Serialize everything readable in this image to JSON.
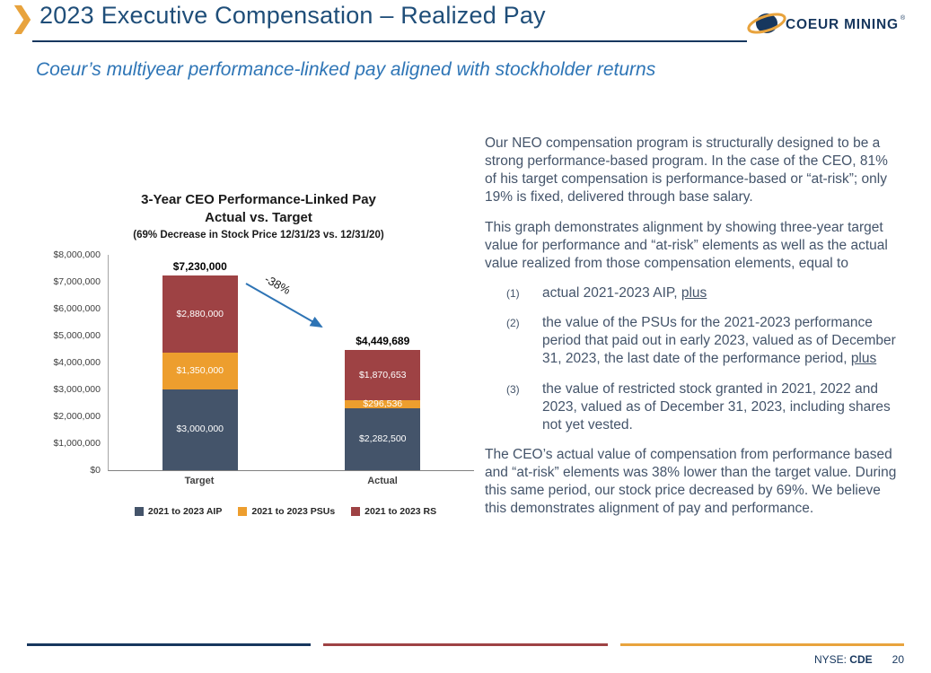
{
  "header": {
    "title": "2023 Executive Compensation – Realized Pay",
    "logo_text": "COEUR MINING",
    "logo_reg": "®"
  },
  "subtitle": "Coeur’s multiyear performance-linked pay aligned with stockholder returns",
  "chart_data": {
    "type": "bar",
    "stacked": true,
    "title": "3-Year CEO Performance-Linked Pay",
    "subtitle": "Actual vs. Target",
    "note": "(69% Decrease in Stock Price 12/31/23 vs. 12/31/20)",
    "categories": [
      "Target",
      "Actual"
    ],
    "series": [
      {
        "name": "2021 to 2023 AIP",
        "color": "#44546A",
        "values": [
          3000000,
          2282500
        ],
        "labels": [
          "$3,000,000",
          "$2,282,500"
        ]
      },
      {
        "name": "2021 to 2023 PSUs",
        "color": "#ED9E2E",
        "values": [
          1350000,
          296536
        ],
        "labels": [
          "$1,350,000",
          "$296,536"
        ]
      },
      {
        "name": "2021 to 2023 RS",
        "color": "#9E4244",
        "values": [
          2880000,
          1870653
        ],
        "labels": [
          "$2,880,000",
          "$1,870,653"
        ]
      }
    ],
    "totals": [
      "$7,230,000",
      "$4,449,689"
    ],
    "annotation": "-38%",
    "ylim": [
      0,
      8000000
    ],
    "ytick_step": 1000000,
    "y_ticks": [
      "$8,000,000",
      "$7,000,000",
      "$6,000,000",
      "$5,000,000",
      "$4,000,000",
      "$3,000,000",
      "$2,000,000",
      "$1,000,000",
      "$0"
    ],
    "legend_position": "bottom",
    "grid": false
  },
  "body": {
    "p1": "Our NEO compensation program is structurally designed to be a strong performance-based program. In the case of the CEO, 81% of his target compensation is performance-based or “at-risk”; only 19% is fixed, delivered through base salary.",
    "p2": "This graph demonstrates alignment by showing three-year target value for performance and “at-risk” elements as well as the actual value realized from those compensation elements, equal to",
    "list": [
      {
        "num": "(1)",
        "text": "actual 2021-2023 AIP, ",
        "underline": "plus"
      },
      {
        "num": "(2)",
        "text": "the value of the PSUs for the 2021-2023 performance period that paid out in early 2023, valued as of December 31, 2023, the last date of the performance period, ",
        "underline": "plus"
      },
      {
        "num": "(3)",
        "text": "the value of restricted stock granted in 2021, 2022 and 2023, valued as of December 31, 2023, including shares not yet vested.",
        "underline": ""
      }
    ],
    "p3": "The CEO’s actual value of compensation from performance based and “at-risk” elements was 38% lower than the target value. During this same period, our stock price decreased by 69%. We believe this demonstrates alignment of pay and performance."
  },
  "footer": {
    "ticker_label": "NYSE: ",
    "ticker": "CDE",
    "page": "20"
  }
}
